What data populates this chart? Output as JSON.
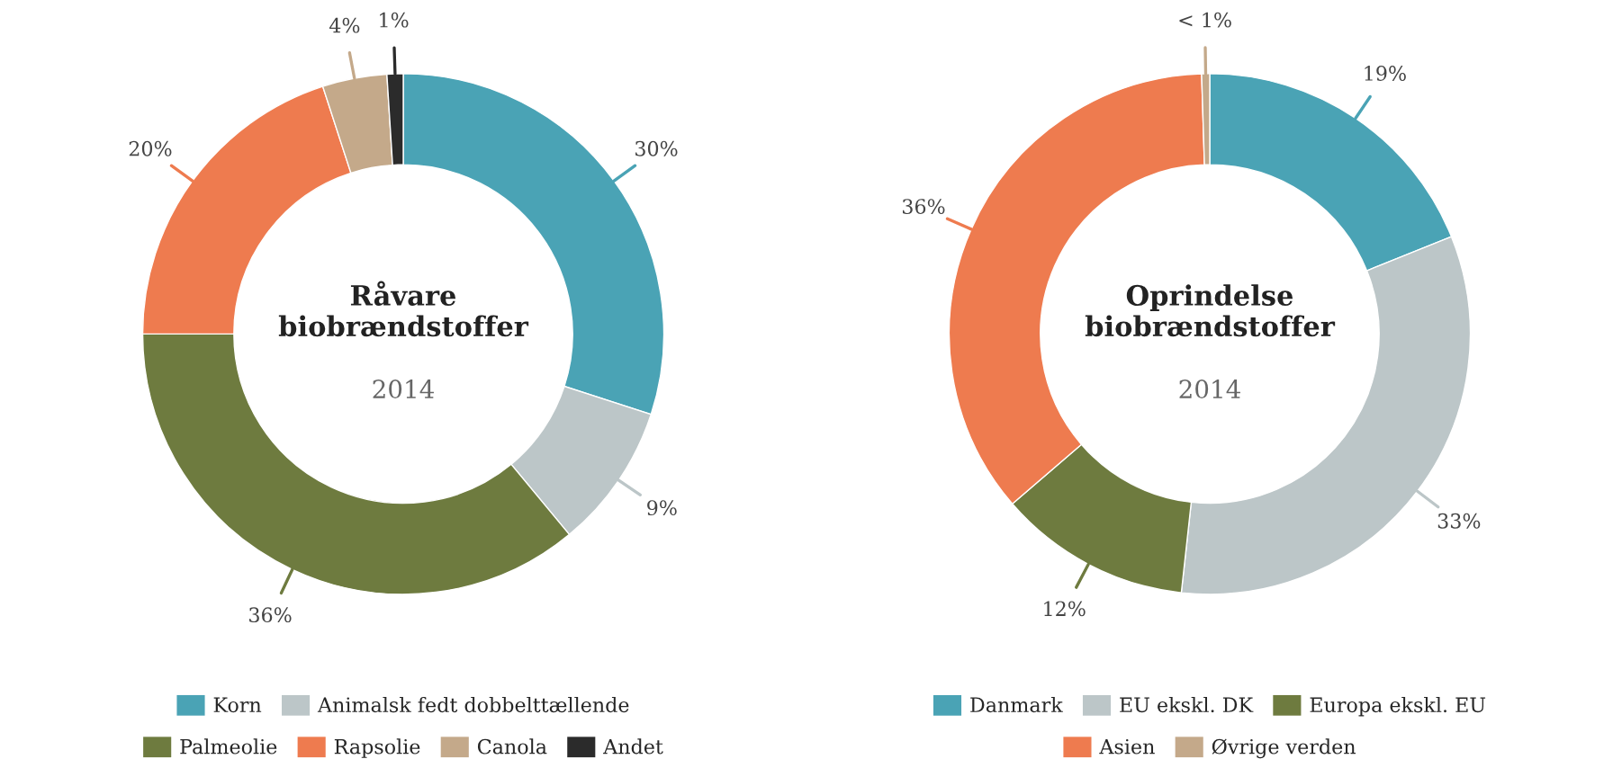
{
  "chart_data": [
    {
      "type": "donut",
      "title": "Råvare\nbiobrændstoffer",
      "subtitle": "2014",
      "categories": [
        "Korn",
        "Animalsk fedt dobbelttællende",
        "Palmeolie",
        "Rapsolie",
        "Canola",
        "Andet"
      ],
      "values": [
        30,
        9,
        36,
        20,
        4,
        1
      ],
      "value_labels": [
        "30%",
        "9%",
        "36%",
        "20%",
        "4%",
        "1%"
      ],
      "colors": [
        "#4aa3b5",
        "#bcc6c8",
        "#6e7b3f",
        "#ee7b4f",
        "#c4a98a",
        "#2b2b2b"
      ],
      "legend": "bottom"
    },
    {
      "type": "donut",
      "title": "Oprindelse\nbiobrændstoffer",
      "subtitle": "2014",
      "categories": [
        "Danmark",
        "EU ekskl. DK",
        "Europa ekskl. EU",
        "Asien",
        "Øvrige verden"
      ],
      "values": [
        19,
        33,
        12,
        36,
        0.5
      ],
      "value_labels": [
        "19%",
        "33%",
        "12%",
        "36%",
        "< 1%"
      ],
      "colors": [
        "#4aa3b5",
        "#bcc6c8",
        "#6e7b3f",
        "#ee7b4f",
        "#c4a98a"
      ],
      "legend": "bottom"
    }
  ]
}
